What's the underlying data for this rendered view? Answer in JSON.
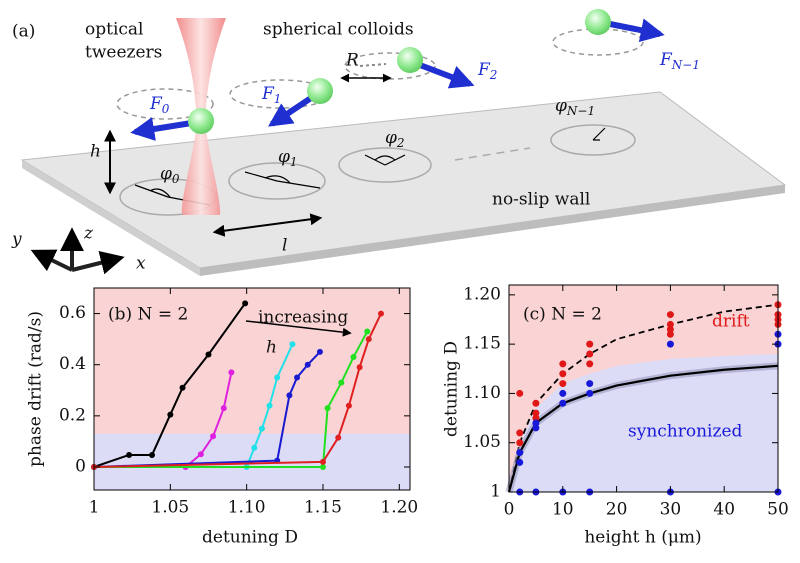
{
  "diagram": {
    "panel_label": "(a)",
    "tweezers_label": [
      "optical",
      "tweezers"
    ],
    "colloids_label": "spherical colloids",
    "spacing_label": "R",
    "height_label": "h",
    "distance_label": "l",
    "wall_label": "no-slip wall",
    "axes": {
      "x": "x",
      "y": "y",
      "z": "z"
    },
    "forces": [
      {
        "symbol": "F",
        "sub": "0"
      },
      {
        "symbol": "F",
        "sub": "1"
      },
      {
        "symbol": "F",
        "sub": "2"
      },
      {
        "symbol": "F",
        "sub": "N−1"
      }
    ],
    "phases": [
      {
        "symbol": "φ",
        "sub": "0"
      },
      {
        "symbol": "φ",
        "sub": "1"
      },
      {
        "symbol": "φ",
        "sub": "2"
      },
      {
        "symbol": "φ",
        "sub": "N−1"
      }
    ]
  },
  "chart_data": [
    {
      "type": "line",
      "title": "(b)  N = 2",
      "annotations": [
        "increasing",
        "h"
      ],
      "x_label": "detuning D",
      "y_label": "phase drift (rad/s)",
      "xlim": [
        1,
        1.207
      ],
      "ylim": [
        -0.09,
        0.7
      ],
      "xticks": [
        1,
        1.05,
        {
          "value": 1.1,
          "label": "1.10"
        },
        1.15,
        {
          "value": 1.2,
          "label": "1.20"
        }
      ],
      "yticks": [
        0,
        0.2,
        0.4,
        0.6
      ],
      "background": "#fad4d4",
      "regions": [
        {
          "color": "#dcdcf6",
          "from": -0.09,
          "to": 0.13
        }
      ],
      "series": [
        {
          "color": "#000000",
          "x": [
            1,
            1.023,
            1.038,
            1.05,
            1.058,
            1.075,
            1.099
          ],
          "values": [
            0,
            0.047,
            0.047,
            0.205,
            0.31,
            0.44,
            0.64
          ]
        },
        {
          "color": "#e020e0",
          "x": [
            1,
            1.06,
            1.07,
            1.078,
            1.085,
            1.09
          ],
          "values": [
            0,
            0,
            0.05,
            0.12,
            0.23,
            0.37
          ]
        },
        {
          "color": "#20e0e8",
          "x": [
            1,
            1.1,
            1.105,
            1.11,
            1.115,
            1.12,
            1.13
          ],
          "values": [
            0,
            0,
            0.075,
            0.15,
            0.24,
            0.35,
            0.48
          ]
        },
        {
          "color": "#1a1ad0",
          "x": [
            1,
            1.12,
            1.128,
            1.133,
            1.14,
            1.148
          ],
          "values": [
            0,
            0.025,
            0.28,
            0.35,
            0.4,
            0.45
          ]
        },
        {
          "color": "#20e020",
          "x": [
            1,
            1.15,
            1.153,
            1.162,
            1.17,
            1.179
          ],
          "values": [
            0,
            0,
            0.23,
            0.33,
            0.43,
            0.53
          ]
        },
        {
          "color": "#e02020",
          "x": [
            1,
            1.15,
            1.16,
            1.167,
            1.174,
            1.18,
            1.188
          ],
          "values": [
            0,
            0.02,
            0.115,
            0.24,
            0.39,
            0.5,
            0.6
          ]
        }
      ]
    },
    {
      "type": "scatter",
      "title": "(c)  N = 2",
      "annotations": [
        "drift",
        "synchronized"
      ],
      "x_label": "height h (μm)",
      "y_label": "detuning D",
      "xlim": [
        0,
        50
      ],
      "ylim": [
        1,
        1.21
      ],
      "xticks": [
        0,
        10,
        20,
        30,
        40,
        50
      ],
      "yticks": [
        1,
        1.05,
        {
          "value": 1.1,
          "label": "1.10"
        },
        1.15,
        {
          "value": 1.2,
          "label": "1.20"
        }
      ],
      "background": "#fad4d4",
      "series": [
        {
          "mode": "area",
          "color": "#dcdcf6",
          "x": [
            0,
            2,
            5,
            10,
            15,
            20,
            30,
            40,
            50
          ],
          "values": [
            1,
            1.05,
            1.085,
            1.11,
            1.12,
            1.128,
            1.135,
            1.138,
            1.14
          ]
        },
        {
          "mode": "dashed",
          "color": "#000000",
          "x": [
            0,
            2,
            5,
            10,
            15,
            20,
            30,
            40,
            50
          ],
          "values": [
            1,
            1.05,
            1.09,
            1.12,
            1.14,
            1.155,
            1.17,
            1.183,
            1.19
          ]
        },
        {
          "mode": "solid",
          "color": "#000000",
          "x": [
            0,
            2,
            5,
            10,
            15,
            20,
            30,
            40,
            50
          ],
          "values": [
            1,
            1.04,
            1.07,
            1.09,
            1.1,
            1.108,
            1.118,
            1.124,
            1.128
          ]
        },
        {
          "mode": "markers",
          "color": "#e01818",
          "x": [
            2,
            2,
            2,
            5,
            5,
            5,
            10,
            10,
            10,
            15,
            15,
            15,
            30,
            30,
            30,
            30,
            50,
            50,
            50,
            50
          ],
          "values": [
            1.1,
            1.06,
            1.05,
            1.09,
            1.08,
            1.075,
            1.13,
            1.12,
            1.11,
            1.15,
            1.14,
            1.13,
            1.18,
            1.17,
            1.165,
            1.16,
            1.19,
            1.18,
            1.175,
            1.17
          ]
        },
        {
          "mode": "markers",
          "color": "#1818d8",
          "x": [
            2,
            2,
            2,
            5,
            5,
            5,
            10,
            10,
            10,
            15,
            15,
            15,
            30,
            30,
            50,
            50,
            50
          ],
          "values": [
            1.04,
            1.03,
            1,
            1.07,
            1.065,
            1,
            1.1,
            1.09,
            1,
            1.11,
            1.1,
            1,
            1.15,
            1,
            1.16,
            1.15,
            1
          ]
        }
      ]
    }
  ]
}
